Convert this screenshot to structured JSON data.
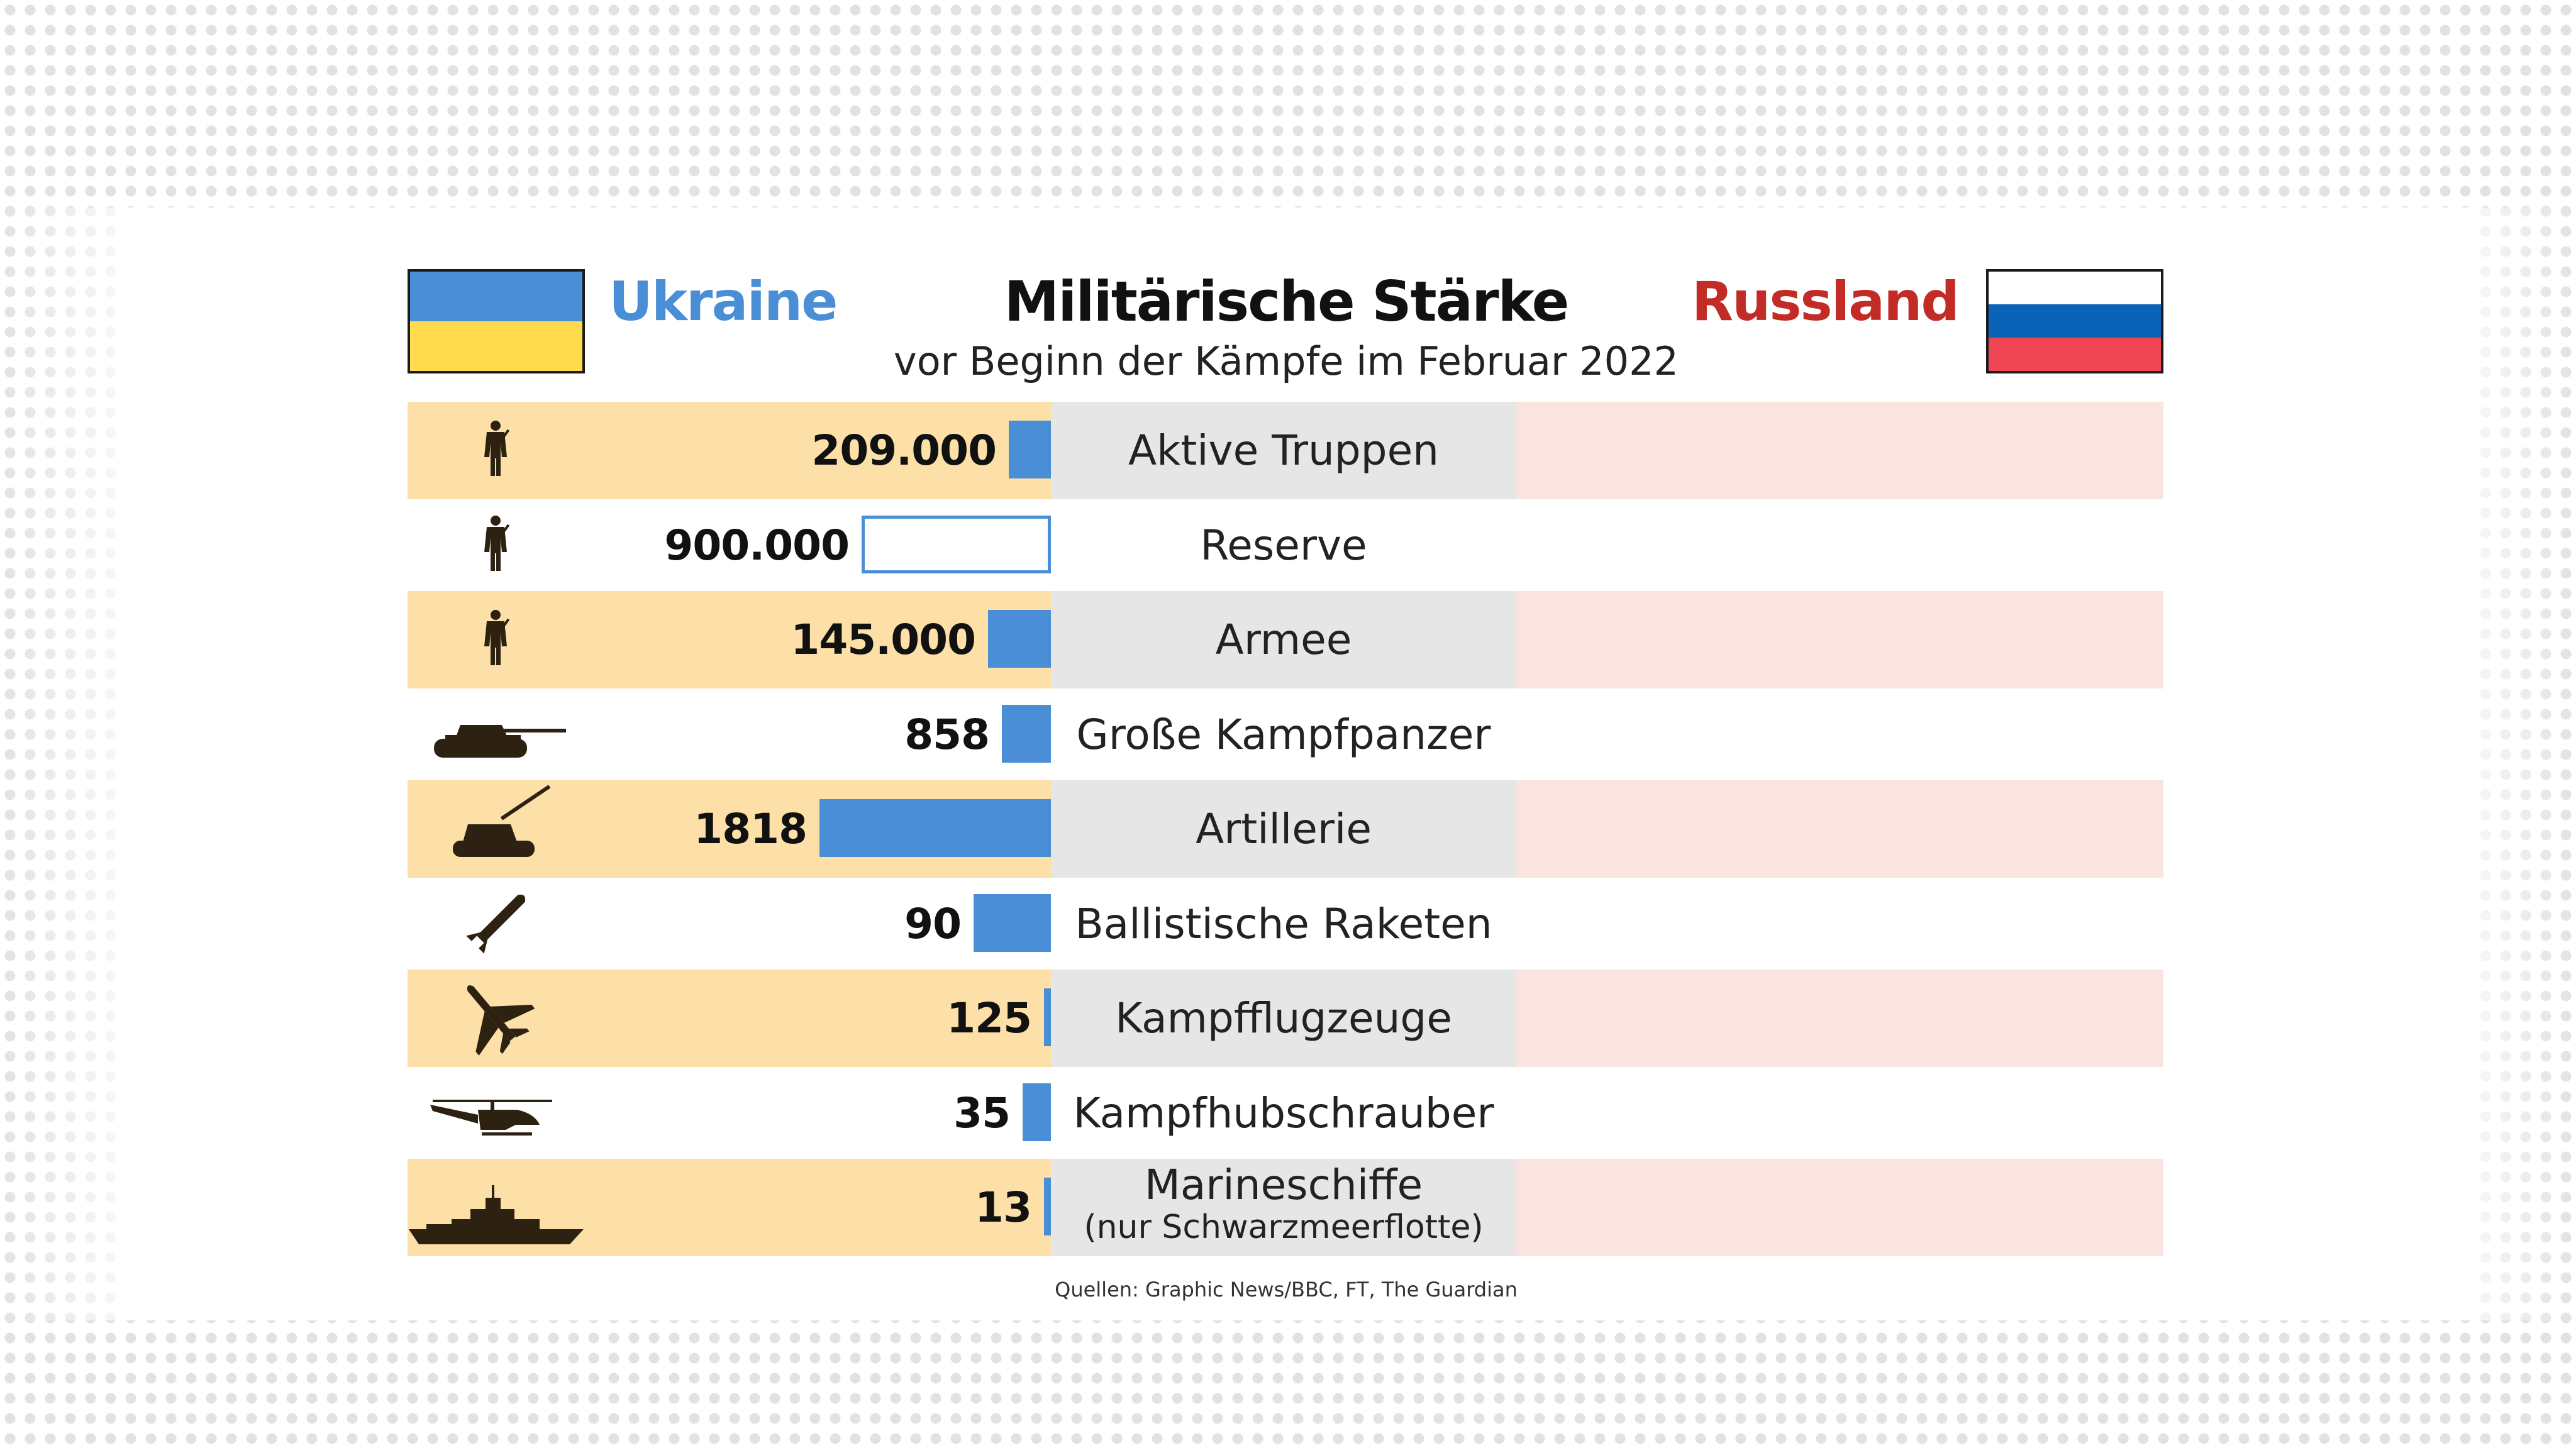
{
  "header": {
    "title": "Militärische Stärke",
    "subtitle": "vor Beginn der Kämpfe im Februar 2022",
    "country_left": "Ukraine",
    "country_right": "Russland"
  },
  "colors": {
    "ukraine_blue": "#4a8fd6",
    "ukraine_yellow": "#ffdb4d",
    "russia_red_text": "#c32b26",
    "row_shade_left": "#fde0a8",
    "row_shade_mid": "#e6e6e6",
    "row_shade_right": "#f9e4e0"
  },
  "chart_data": {
    "type": "bar",
    "orientation": "horizontal",
    "title": "Militärische Stärke",
    "subtitle": "vor Beginn der Kämpfe im Februar 2022",
    "series": [
      {
        "name": "Ukraine",
        "values": [
          209000,
          900000,
          145000,
          858,
          1818,
          90,
          125,
          35,
          13
        ]
      },
      {
        "name": "Russland",
        "values": [
          null,
          null,
          null,
          null,
          null,
          null,
          null,
          null,
          null
        ]
      }
    ],
    "categories": [
      "Aktive Truppen",
      "Reserve",
      "Armee",
      "Große Kampfpanzer",
      "Artillerie",
      "Ballistische Raketen",
      "Kampfflugzeuge",
      "Kampfhubschrauber",
      "Marineschiffe"
    ],
    "category_notes": [
      "",
      "",
      "",
      "",
      "",
      "",
      "",
      "",
      "(nur Schwarzmeerflotte)"
    ],
    "value_labels": [
      "209.000",
      "900.000",
      "145.000",
      "858",
      "1818",
      "90",
      "125",
      "35",
      "13"
    ],
    "icons": [
      "soldier-icon",
      "soldier-icon",
      "soldier-icon",
      "tank-icon",
      "artillery-icon",
      "missile-icon",
      "fighter-jet-icon",
      "helicopter-icon",
      "warship-icon"
    ],
    "bar_scale_fraction": [
      0.06,
      0.27,
      0.09,
      0.07,
      0.33,
      0.11,
      0.01,
      0.04,
      0.01
    ],
    "bar_outline_only": [
      false,
      true,
      false,
      false,
      false,
      false,
      false,
      false,
      false
    ],
    "shaded_rows": [
      true,
      false,
      true,
      false,
      true,
      false,
      true,
      false,
      true
    ]
  },
  "footer": {
    "source": "Quellen: Graphic News/BBC, FT, The Guardian"
  }
}
